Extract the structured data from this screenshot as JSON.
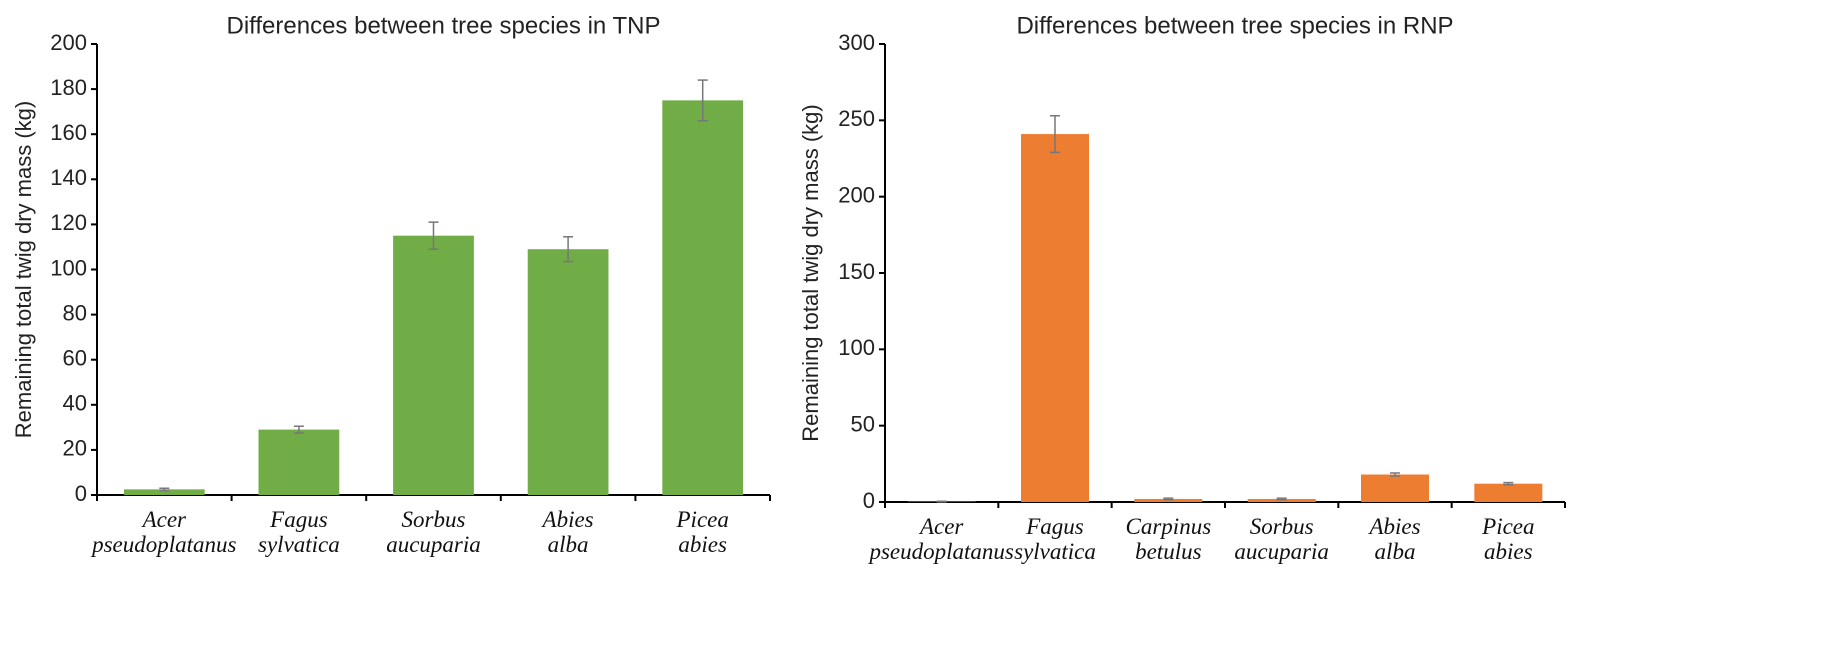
{
  "chart_data": [
    {
      "type": "bar",
      "title": "Differences between tree species in TNP",
      "y_label": "Remaining total twig dry mass (kg)",
      "categories": [
        "Acer pseudoplatanus",
        "Fagus sylvatica",
        "Sorbus aucuparia",
        "Abies alba",
        "Picea abies"
      ],
      "values": [
        2.5,
        29,
        115,
        109,
        175
      ],
      "errors": [
        0.5,
        1.5,
        6,
        5.5,
        9
      ],
      "color": "#70ad47",
      "ylim": [
        0,
        200
      ],
      "yticks": [
        0,
        20,
        40,
        60,
        80,
        100,
        120,
        140,
        160,
        180,
        200
      ]
    },
    {
      "type": "bar",
      "title": "Differences between tree species in RNP",
      "y_label": "Remaining total twig dry mass (kg)",
      "categories": [
        "Acer pseudoplatanus",
        "Fagus sylvatica",
        "Carpinus betulus",
        "Sorbus aucuparia",
        "Abies alba",
        "Picea abies"
      ],
      "values": [
        0.3,
        241,
        2,
        2,
        18,
        12
      ],
      "errors": [
        0.2,
        12,
        0.5,
        0.5,
        1,
        0.7
      ],
      "color": "#ed7d31",
      "ylim": [
        0,
        300
      ],
      "yticks": [
        0,
        50,
        100,
        150,
        200,
        250,
        300
      ]
    }
  ]
}
